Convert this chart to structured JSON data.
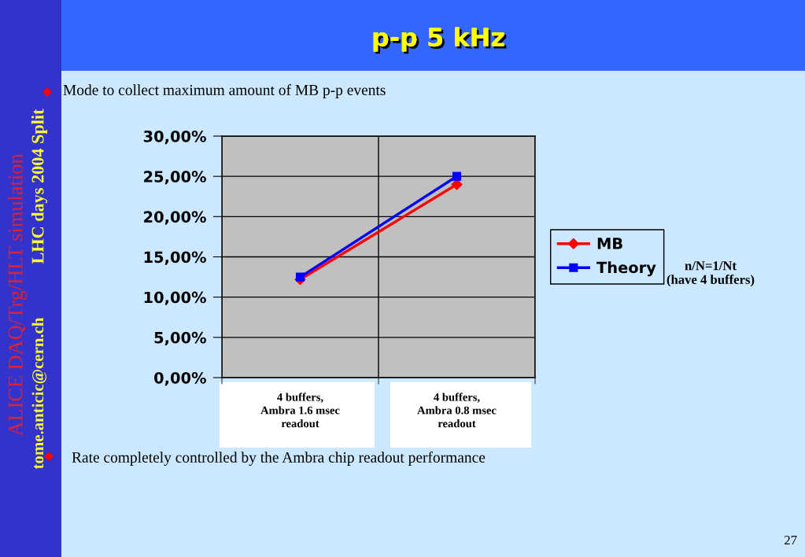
{
  "chart_data": {
    "type": "line",
    "title": "p-p 5 kHz",
    "subtitle": "Mode to collect maximum amount of MB p-p events",
    "categories": [
      "4 buffers,\nAmbra 1.6 msec\nreadout",
      "4 buffers,\nAmbra 0.8 msec\nreadout"
    ],
    "series": [
      {
        "name": "MB",
        "color": "#ff0000",
        "marker": "diamond",
        "values": [
          12.2,
          24.0
        ]
      },
      {
        "name": "Theory",
        "color": "#0000ff",
        "marker": "square",
        "values": [
          12.5,
          25.0
        ]
      }
    ],
    "ylim": [
      0,
      30
    ],
    "yticks": [
      {
        "value": 0,
        "label": "0,00%"
      },
      {
        "value": 5,
        "label": "5,00%"
      },
      {
        "value": 10,
        "label": "10,00%"
      },
      {
        "value": 15,
        "label": "15,00%"
      },
      {
        "value": 20,
        "label": "20,00%"
      },
      {
        "value": 25,
        "label": "25,00%"
      },
      {
        "value": 30,
        "label": "30,00%"
      }
    ],
    "grid": true,
    "legend": "right",
    "line_style": "solid",
    "annotations": [
      "n/N=1/Nt\n(have 4 buffers)",
      "Rate completely controlled by the Ambra chip readout performance",
      "ALICE DAQ/Trg/HLT simulation",
      "LHC days 2004 Split",
      "tome.anticic@cern.ch",
      "27"
    ]
  }
}
